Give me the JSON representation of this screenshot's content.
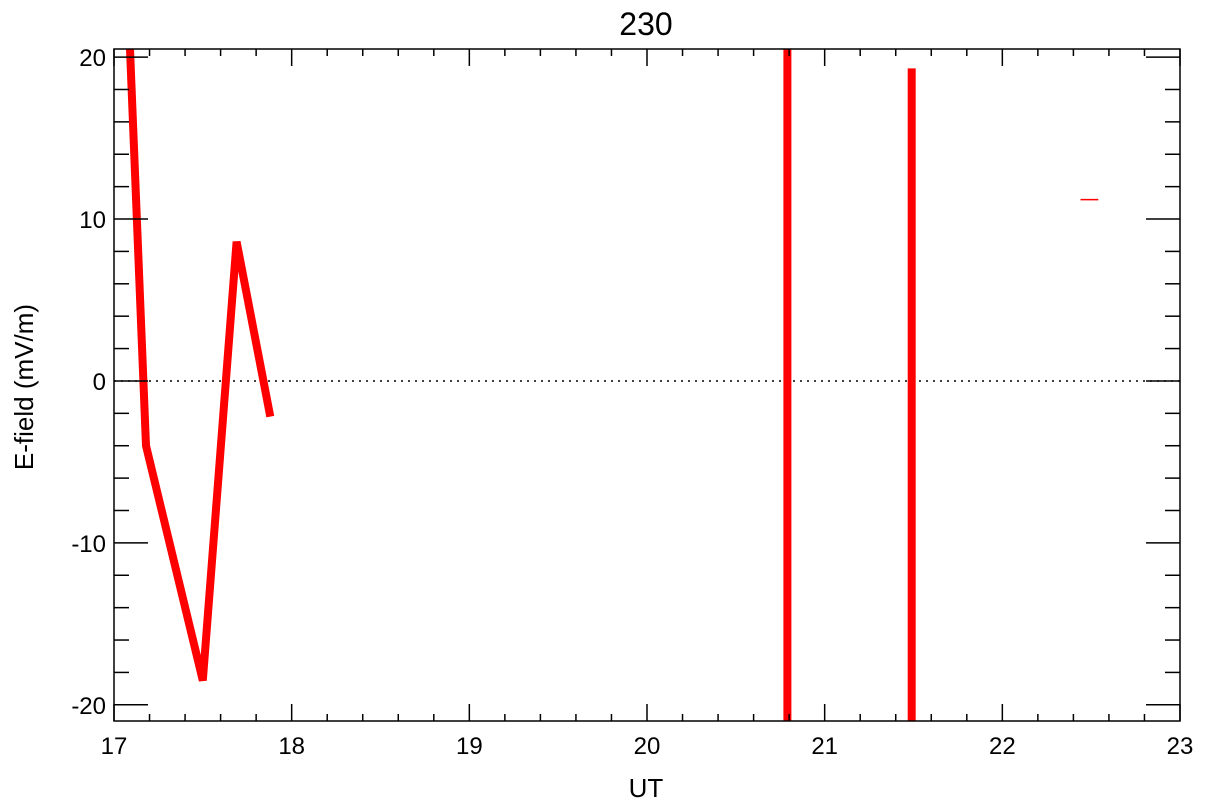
{
  "chart_data": {
    "type": "line",
    "title": "230",
    "xlabel": "UT",
    "ylabel": "E-field (mV/m)",
    "xlim": [
      17,
      23
    ],
    "ylim": [
      -21,
      20.5
    ],
    "x_ticks": [
      17,
      18,
      19,
      20,
      21,
      22,
      23
    ],
    "x_tick_labels": [
      "17",
      "18",
      "19",
      "20",
      "21",
      "22",
      "23"
    ],
    "y_ticks": [
      20,
      10,
      0,
      -10,
      -20
    ],
    "y_tick_labels": [
      "20",
      "10",
      "0",
      "-10",
      "-20"
    ],
    "x_minor_step": 0.2,
    "y_minor_step": 2,
    "zero_line": {
      "y": 0,
      "style": "dotted"
    },
    "grid": false,
    "series": [
      {
        "color": "#ff0000",
        "segments": [
          [
            [
              17.09,
              20.5
            ],
            [
              17.18,
              -4.0
            ],
            [
              17.5,
              -18.5
            ],
            [
              17.69,
              8.6
            ],
            [
              17.88,
              -2.2
            ]
          ],
          [
            [
              20.79,
              20.5
            ],
            [
              20.79,
              -21.0
            ]
          ],
          [
            [
              21.49,
              19.3
            ],
            [
              21.49,
              -21.0
            ]
          ],
          [
            [
              22.44,
              11.2
            ],
            [
              22.54,
              11.2
            ]
          ]
        ]
      }
    ]
  }
}
